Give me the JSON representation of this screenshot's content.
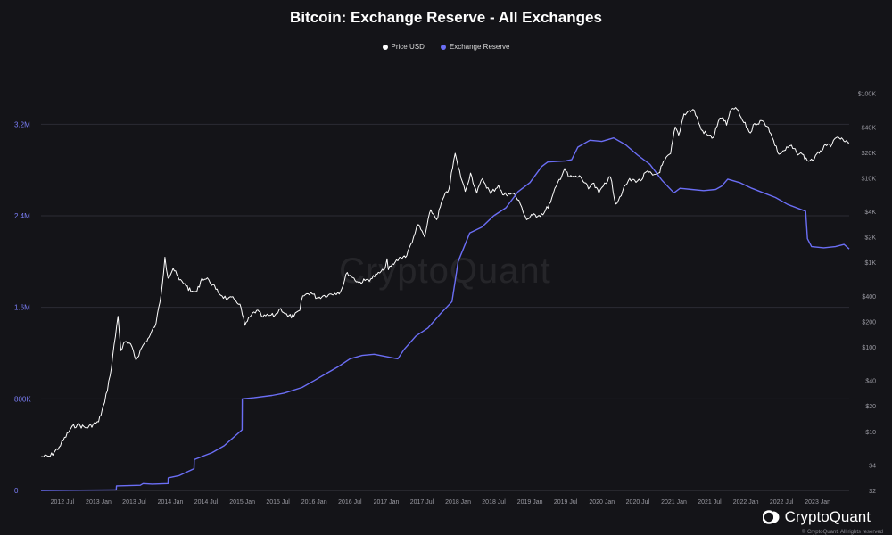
{
  "chart_data": {
    "type": "line",
    "title": "Bitcoin: Exchange Reserve - All Exchanges",
    "legend_placement": "top-center",
    "grid": "horizontal",
    "x_tick_labels": [
      "2012 Jul",
      "2013 Jan",
      "2013 Jul",
      "2014 Jan",
      "2014 Jul",
      "2015 Jan",
      "2015 Jul",
      "2016 Jan",
      "2016 Jul",
      "2017 Jan",
      "2017 Jul",
      "2018 Jan",
      "2018 Jul",
      "2019 Jan",
      "2019 Jul",
      "2020 Jan",
      "2020 Jul",
      "2021 Jan",
      "2021 Jul",
      "2022 Jan",
      "2022 Jul",
      "2023 Jan"
    ],
    "x_range": [
      "2012-03-15",
      "2023-06-10"
    ],
    "y_left": {
      "scale": "linear",
      "ylim": [
        0,
        3600000
      ],
      "ticks": [
        0,
        800000,
        1600000,
        2400000,
        3200000
      ],
      "tick_labels": [
        "0",
        "800K",
        "1.6M",
        "2.4M",
        "3.2M"
      ]
    },
    "y_right": {
      "scale": "log",
      "ylim": [
        2,
        150000
      ],
      "ticks": [
        2,
        4,
        10,
        20,
        40,
        100,
        200,
        400,
        1000,
        2000,
        4000,
        10000,
        20000,
        40000,
        100000
      ],
      "tick_labels": [
        "$2",
        "$4",
        "$10",
        "$20",
        "$40",
        "$100",
        "$200",
        "$400",
        "$1K",
        "$2K",
        "$4K",
        "$10K",
        "$20K",
        "$40K",
        "$100K"
      ]
    },
    "series": [
      {
        "name": "Price USD",
        "color": "#ffffff",
        "axis": "right",
        "points": [
          [
            "2012-03-15",
            5.0
          ],
          [
            "2012-05-01",
            5.1
          ],
          [
            "2012-06-15",
            6.5
          ],
          [
            "2012-08-15",
            11
          ],
          [
            "2012-09-15",
            12
          ],
          [
            "2012-11-01",
            11
          ],
          [
            "2013-01-01",
            13
          ],
          [
            "2013-02-01",
            22
          ],
          [
            "2013-03-01",
            46
          ],
          [
            "2013-04-10",
            230
          ],
          [
            "2013-04-25",
            90
          ],
          [
            "2013-05-15",
            115
          ],
          [
            "2013-06-20",
            100
          ],
          [
            "2013-07-10",
            70
          ],
          [
            "2013-08-15",
            105
          ],
          [
            "2013-09-15",
            130
          ],
          [
            "2013-10-20",
            190
          ],
          [
            "2013-11-15",
            420
          ],
          [
            "2013-12-04",
            1150
          ],
          [
            "2013-12-20",
            650
          ],
          [
            "2014-01-15",
            850
          ],
          [
            "2014-02-15",
            620
          ],
          [
            "2014-03-15",
            560
          ],
          [
            "2014-04-15",
            450
          ],
          [
            "2014-05-15",
            450
          ],
          [
            "2014-06-10",
            650
          ],
          [
            "2014-07-15",
            620
          ],
          [
            "2014-08-20",
            480
          ],
          [
            "2014-09-20",
            400
          ],
          [
            "2014-10-20",
            370
          ],
          [
            "2014-11-20",
            370
          ],
          [
            "2014-12-20",
            320
          ],
          [
            "2015-01-14",
            180
          ],
          [
            "2015-02-15",
            235
          ],
          [
            "2015-03-15",
            270
          ],
          [
            "2015-04-15",
            225
          ],
          [
            "2015-05-15",
            235
          ],
          [
            "2015-06-15",
            235
          ],
          [
            "2015-07-15",
            285
          ],
          [
            "2015-08-20",
            230
          ],
          [
            "2015-09-20",
            230
          ],
          [
            "2015-10-20",
            270
          ],
          [
            "2015-11-04",
            400
          ],
          [
            "2015-12-15",
            440
          ],
          [
            "2016-01-15",
            380
          ],
          [
            "2016-02-15",
            400
          ],
          [
            "2016-03-15",
            415
          ],
          [
            "2016-04-15",
            430
          ],
          [
            "2016-05-15",
            455
          ],
          [
            "2016-06-17",
            760
          ],
          [
            "2016-07-15",
            660
          ],
          [
            "2016-08-15",
            575
          ],
          [
            "2016-09-15",
            610
          ],
          [
            "2016-10-15",
            640
          ],
          [
            "2016-11-15",
            720
          ],
          [
            "2016-12-20",
            800
          ],
          [
            "2017-01-05",
            1100
          ],
          [
            "2017-01-12",
            820
          ],
          [
            "2017-02-15",
            1000
          ],
          [
            "2017-03-15",
            1150
          ],
          [
            "2017-04-15",
            1200
          ],
          [
            "2017-05-20",
            2000
          ],
          [
            "2017-06-12",
            2800
          ],
          [
            "2017-07-15",
            2000
          ],
          [
            "2017-08-15",
            4200
          ],
          [
            "2017-09-14",
            3200
          ],
          [
            "2017-10-15",
            5600
          ],
          [
            "2017-11-15",
            7300
          ],
          [
            "2017-12-17",
            19500
          ],
          [
            "2018-01-01",
            13500
          ],
          [
            "2018-02-06",
            6900
          ],
          [
            "2018-03-05",
            11400
          ],
          [
            "2018-04-06",
            6600
          ],
          [
            "2018-05-05",
            9800
          ],
          [
            "2018-06-15",
            6500
          ],
          [
            "2018-07-25",
            8200
          ],
          [
            "2018-08-15",
            6300
          ],
          [
            "2018-09-15",
            6500
          ],
          [
            "2018-10-15",
            6400
          ],
          [
            "2018-11-20",
            4500
          ],
          [
            "2018-12-15",
            3200
          ],
          [
            "2019-01-15",
            3600
          ],
          [
            "2019-02-15",
            3600
          ],
          [
            "2019-03-15",
            3900
          ],
          [
            "2019-04-15",
            5100
          ],
          [
            "2019-05-15",
            8000
          ],
          [
            "2019-06-26",
            12900
          ],
          [
            "2019-07-15",
            10300
          ],
          [
            "2019-08-15",
            10200
          ],
          [
            "2019-09-15",
            10300
          ],
          [
            "2019-10-25",
            7400
          ],
          [
            "2019-11-15",
            8600
          ],
          [
            "2019-12-17",
            6600
          ],
          [
            "2020-01-15",
            8700
          ],
          [
            "2020-02-13",
            10300
          ],
          [
            "2020-03-12",
            4900
          ],
          [
            "2020-04-15",
            6900
          ],
          [
            "2020-05-15",
            9300
          ],
          [
            "2020-06-15",
            9400
          ],
          [
            "2020-07-15",
            9200
          ],
          [
            "2020-08-15",
            11800
          ],
          [
            "2020-09-15",
            10800
          ],
          [
            "2020-10-15",
            11400
          ],
          [
            "2020-11-15",
            16000
          ],
          [
            "2020-12-15",
            19400
          ],
          [
            "2021-01-08",
            40000
          ],
          [
            "2021-01-25",
            32000
          ],
          [
            "2021-02-21",
            57000
          ],
          [
            "2021-03-13",
            61000
          ],
          [
            "2021-04-14",
            63000
          ],
          [
            "2021-05-20",
            37000
          ],
          [
            "2021-06-22",
            32000
          ],
          [
            "2021-07-20",
            30000
          ],
          [
            "2021-08-15",
            47000
          ],
          [
            "2021-09-07",
            52000
          ],
          [
            "2021-09-25",
            42000
          ],
          [
            "2021-10-20",
            65000
          ],
          [
            "2021-11-10",
            68000
          ],
          [
            "2021-12-15",
            48000
          ],
          [
            "2022-01-24",
            34000
          ],
          [
            "2022-02-15",
            44000
          ],
          [
            "2022-03-28",
            47000
          ],
          [
            "2022-04-25",
            40000
          ],
          [
            "2022-05-15",
            30000
          ],
          [
            "2022-06-18",
            19000
          ],
          [
            "2022-07-15",
            21000
          ],
          [
            "2022-08-15",
            24000
          ],
          [
            "2022-09-15",
            20000
          ],
          [
            "2022-10-15",
            19000
          ],
          [
            "2022-11-09",
            16000
          ],
          [
            "2022-12-15",
            16800
          ],
          [
            "2023-01-15",
            21000
          ],
          [
            "2023-02-15",
            24000
          ],
          [
            "2023-03-15",
            25000
          ],
          [
            "2023-04-14",
            30500
          ],
          [
            "2023-05-15",
            27000
          ],
          [
            "2023-06-10",
            25800
          ]
        ]
      },
      {
        "name": "Exchange Reserve",
        "color": "#6b6ef5",
        "axis": "left",
        "points": [
          [
            "2012-03-15",
            0
          ],
          [
            "2012-12-31",
            3000
          ],
          [
            "2013-04-01",
            5000
          ],
          [
            "2013-04-02",
            40000
          ],
          [
            "2013-08-01",
            45000
          ],
          [
            "2013-08-15",
            60000
          ],
          [
            "2013-10-01",
            55000
          ],
          [
            "2013-12-20",
            60000
          ],
          [
            "2013-12-21",
            110000
          ],
          [
            "2014-02-15",
            130000
          ],
          [
            "2014-05-01",
            190000
          ],
          [
            "2014-05-02",
            270000
          ],
          [
            "2014-08-01",
            330000
          ],
          [
            "2014-10-01",
            390000
          ],
          [
            "2014-12-31",
            530000
          ],
          [
            "2015-01-01",
            800000
          ],
          [
            "2015-03-01",
            810000
          ],
          [
            "2015-06-01",
            830000
          ],
          [
            "2015-08-01",
            850000
          ],
          [
            "2015-11-01",
            900000
          ],
          [
            "2016-01-01",
            960000
          ],
          [
            "2016-03-01",
            1020000
          ],
          [
            "2016-05-01",
            1080000
          ],
          [
            "2016-07-01",
            1150000
          ],
          [
            "2016-09-01",
            1180000
          ],
          [
            "2016-11-01",
            1190000
          ],
          [
            "2017-01-01",
            1170000
          ],
          [
            "2017-03-01",
            1150000
          ],
          [
            "2017-04-01",
            1230000
          ],
          [
            "2017-06-01",
            1350000
          ],
          [
            "2017-08-01",
            1420000
          ],
          [
            "2017-10-01",
            1540000
          ],
          [
            "2017-12-01",
            1650000
          ],
          [
            "2018-01-01",
            2000000
          ],
          [
            "2018-03-01",
            2250000
          ],
          [
            "2018-05-01",
            2300000
          ],
          [
            "2018-07-01",
            2400000
          ],
          [
            "2018-09-01",
            2470000
          ],
          [
            "2018-11-01",
            2610000
          ],
          [
            "2019-01-01",
            2690000
          ],
          [
            "2019-03-01",
            2830000
          ],
          [
            "2019-04-01",
            2870000
          ],
          [
            "2019-07-01",
            2880000
          ],
          [
            "2019-08-01",
            2890000
          ],
          [
            "2019-09-01",
            3000000
          ],
          [
            "2019-11-01",
            3060000
          ],
          [
            "2020-01-01",
            3050000
          ],
          [
            "2020-03-01",
            3080000
          ],
          [
            "2020-05-01",
            3020000
          ],
          [
            "2020-07-01",
            2930000
          ],
          [
            "2020-09-01",
            2850000
          ],
          [
            "2020-11-01",
            2710000
          ],
          [
            "2021-01-01",
            2600000
          ],
          [
            "2021-02-01",
            2640000
          ],
          [
            "2021-04-01",
            2630000
          ],
          [
            "2021-06-01",
            2620000
          ],
          [
            "2021-08-01",
            2630000
          ],
          [
            "2021-09-01",
            2660000
          ],
          [
            "2021-10-01",
            2720000
          ],
          [
            "2021-12-01",
            2690000
          ],
          [
            "2022-02-01",
            2640000
          ],
          [
            "2022-04-01",
            2600000
          ],
          [
            "2022-06-01",
            2560000
          ],
          [
            "2022-08-01",
            2500000
          ],
          [
            "2022-10-01",
            2460000
          ],
          [
            "2022-11-01",
            2440000
          ],
          [
            "2022-11-10",
            2200000
          ],
          [
            "2022-12-01",
            2130000
          ],
          [
            "2023-02-01",
            2120000
          ],
          [
            "2023-04-01",
            2130000
          ],
          [
            "2023-05-15",
            2150000
          ],
          [
            "2023-06-10",
            2110000
          ]
        ]
      }
    ]
  },
  "legend": {
    "price_label": "Price USD",
    "reserve_label": "Exchange Reserve"
  },
  "watermark": "CryptoQuant",
  "logo": "CryptoQuant",
  "copyright": "© CryptoQuant. All rights reserved"
}
